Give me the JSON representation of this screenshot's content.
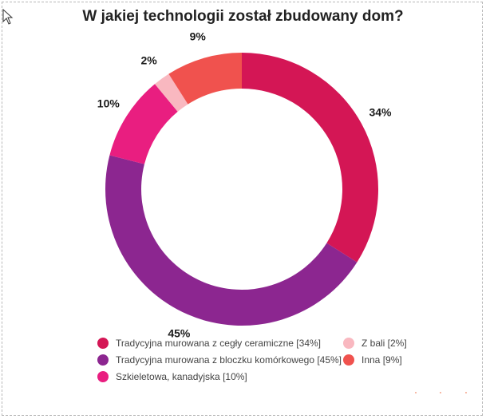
{
  "chart_data": {
    "type": "pie",
    "title": "W jakiej technologii został zbudowany dom?",
    "donut": true,
    "slices": [
      {
        "label": "Tradycyjna murowana z cegły ceramiczne [34%]",
        "value": 34,
        "value_label": "34%",
        "color": "#d41655"
      },
      {
        "label": "Tradycyjna murowana z bloczku komórkowego [45%]",
        "value": 45,
        "value_label": "45%",
        "color": "#8c2690"
      },
      {
        "label": "Szkieletowa, kanadyjska [10%]",
        "value": 10,
        "value_label": "10%",
        "color": "#e91e80"
      },
      {
        "label": "Z bali [2%]",
        "value": 2,
        "value_label": "2%",
        "color": "#f9b8c0"
      },
      {
        "label": "Inna [9%]",
        "value": 9,
        "value_label": "9%",
        "color": "#f0524e"
      }
    ]
  }
}
